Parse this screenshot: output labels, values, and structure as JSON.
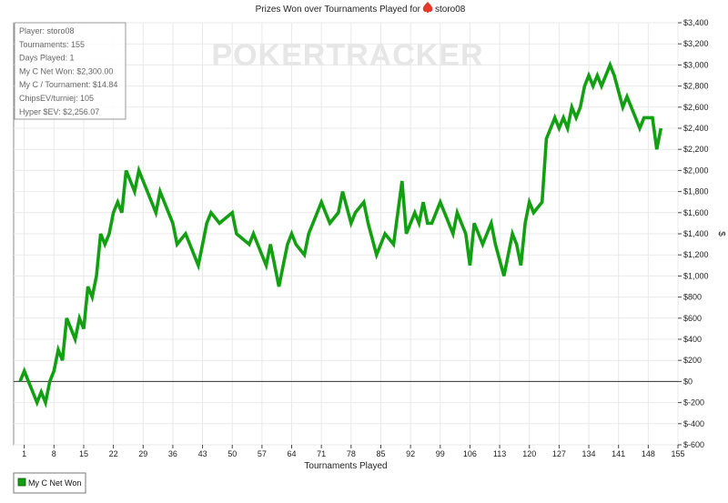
{
  "chart_data": {
    "type": "line",
    "title": "Prizes Won over Tournaments Played for",
    "player_name": "storo08",
    "xlabel": "Tournaments Played",
    "ylabel": "$",
    "ylim": [
      -600,
      3400
    ],
    "xlim": [
      0,
      155
    ],
    "x_ticks": [
      1,
      8,
      15,
      22,
      29,
      36,
      43,
      50,
      57,
      64,
      71,
      78,
      85,
      92,
      99,
      106,
      113,
      120,
      127,
      134,
      141,
      148,
      155
    ],
    "y_ticks": [
      -600,
      -400,
      -200,
      0,
      200,
      400,
      600,
      800,
      1000,
      1200,
      1400,
      1600,
      1800,
      2000,
      2200,
      2400,
      2600,
      2800,
      3000,
      3200,
      3400
    ],
    "y_tick_labels": [
      "$-600",
      "$-400",
      "$-200",
      "$0",
      "$200",
      "$400",
      "$600",
      "$800",
      "$1,000",
      "$1,200",
      "$1,400",
      "$1,600",
      "$1,800",
      "$2,000",
      "$2,200",
      "$2,400",
      "$2,600",
      "$2,800",
      "$3,000",
      "$3,200",
      "$3,400"
    ],
    "grid": true,
    "legend_position": "bottom-left",
    "series": [
      {
        "name": "My C Net Won",
        "color": "#12a012",
        "x": [
          0,
          1,
          2,
          3,
          4,
          5,
          6,
          7,
          8,
          9,
          10,
          11,
          12,
          13,
          14,
          15,
          16,
          17,
          18,
          19,
          20,
          21,
          22,
          23,
          24,
          25,
          26,
          27,
          28,
          29,
          32,
          33,
          36,
          37,
          39,
          40,
          42,
          43,
          44,
          45,
          47,
          50,
          51,
          54,
          55,
          58,
          59,
          61,
          63,
          64,
          65,
          67,
          68,
          69,
          71,
          72,
          73,
          75,
          76,
          78,
          79,
          81,
          82,
          84,
          86,
          88,
          90,
          91,
          93,
          94,
          95,
          96,
          97,
          99,
          100,
          102,
          103,
          105,
          106,
          107,
          108,
          109,
          111,
          112,
          114,
          116,
          117,
          118,
          119,
          120,
          121,
          123,
          124,
          125,
          126,
          127,
          128,
          129,
          130,
          131,
          132,
          133,
          134,
          135,
          136,
          137,
          139,
          140,
          142,
          143,
          144,
          145,
          146,
          147,
          149,
          150,
          151
        ],
        "y": [
          0,
          100,
          0,
          -100,
          -200,
          -100,
          -200,
          0,
          100,
          300,
          200,
          600,
          500,
          400,
          600,
          500,
          900,
          800,
          1000,
          1400,
          1300,
          1400,
          1600,
          1700,
          1600,
          2000,
          1900,
          1800,
          2000,
          1900,
          1600,
          1800,
          1500,
          1300,
          1400,
          1300,
          1100,
          1300,
          1500,
          1600,
          1500,
          1600,
          1400,
          1300,
          1400,
          1100,
          1300,
          900,
          1300,
          1400,
          1300,
          1200,
          1400,
          1500,
          1700,
          1600,
          1500,
          1600,
          1800,
          1500,
          1600,
          1700,
          1500,
          1200,
          1400,
          1300,
          1900,
          1400,
          1600,
          1500,
          1700,
          1500,
          1500,
          1700,
          1600,
          1400,
          1600,
          1400,
          1100,
          1500,
          1400,
          1300,
          1500,
          1300,
          1000,
          1400,
          1300,
          1100,
          1500,
          1700,
          1600,
          1700,
          2300,
          2400,
          2500,
          2400,
          2500,
          2400,
          2600,
          2500,
          2600,
          2800,
          2900,
          2800,
          2900,
          2800,
          3000,
          2900,
          2600,
          2700,
          2600,
          2500,
          2400,
          2500,
          2500,
          2200,
          2400
        ]
      }
    ]
  },
  "stats_box": {
    "lines": [
      "Player: storo08",
      "Tournaments: 155",
      "Days Played: 1",
      "My C Net Won: $2,300.00",
      "My C / Tournament: $14.84",
      "ChipsEV/turniej: 105",
      "Hyper $EV: $2,256.07"
    ]
  },
  "watermark": "POKERTRACKER",
  "legend": {
    "label": "My C Net Won",
    "color": "#12a012"
  },
  "colors": {
    "grid": "#e9e9e9",
    "axis": "#444444",
    "zero_line": "#333333",
    "series": "#12a012",
    "logo_icon": "#e23a2a"
  }
}
